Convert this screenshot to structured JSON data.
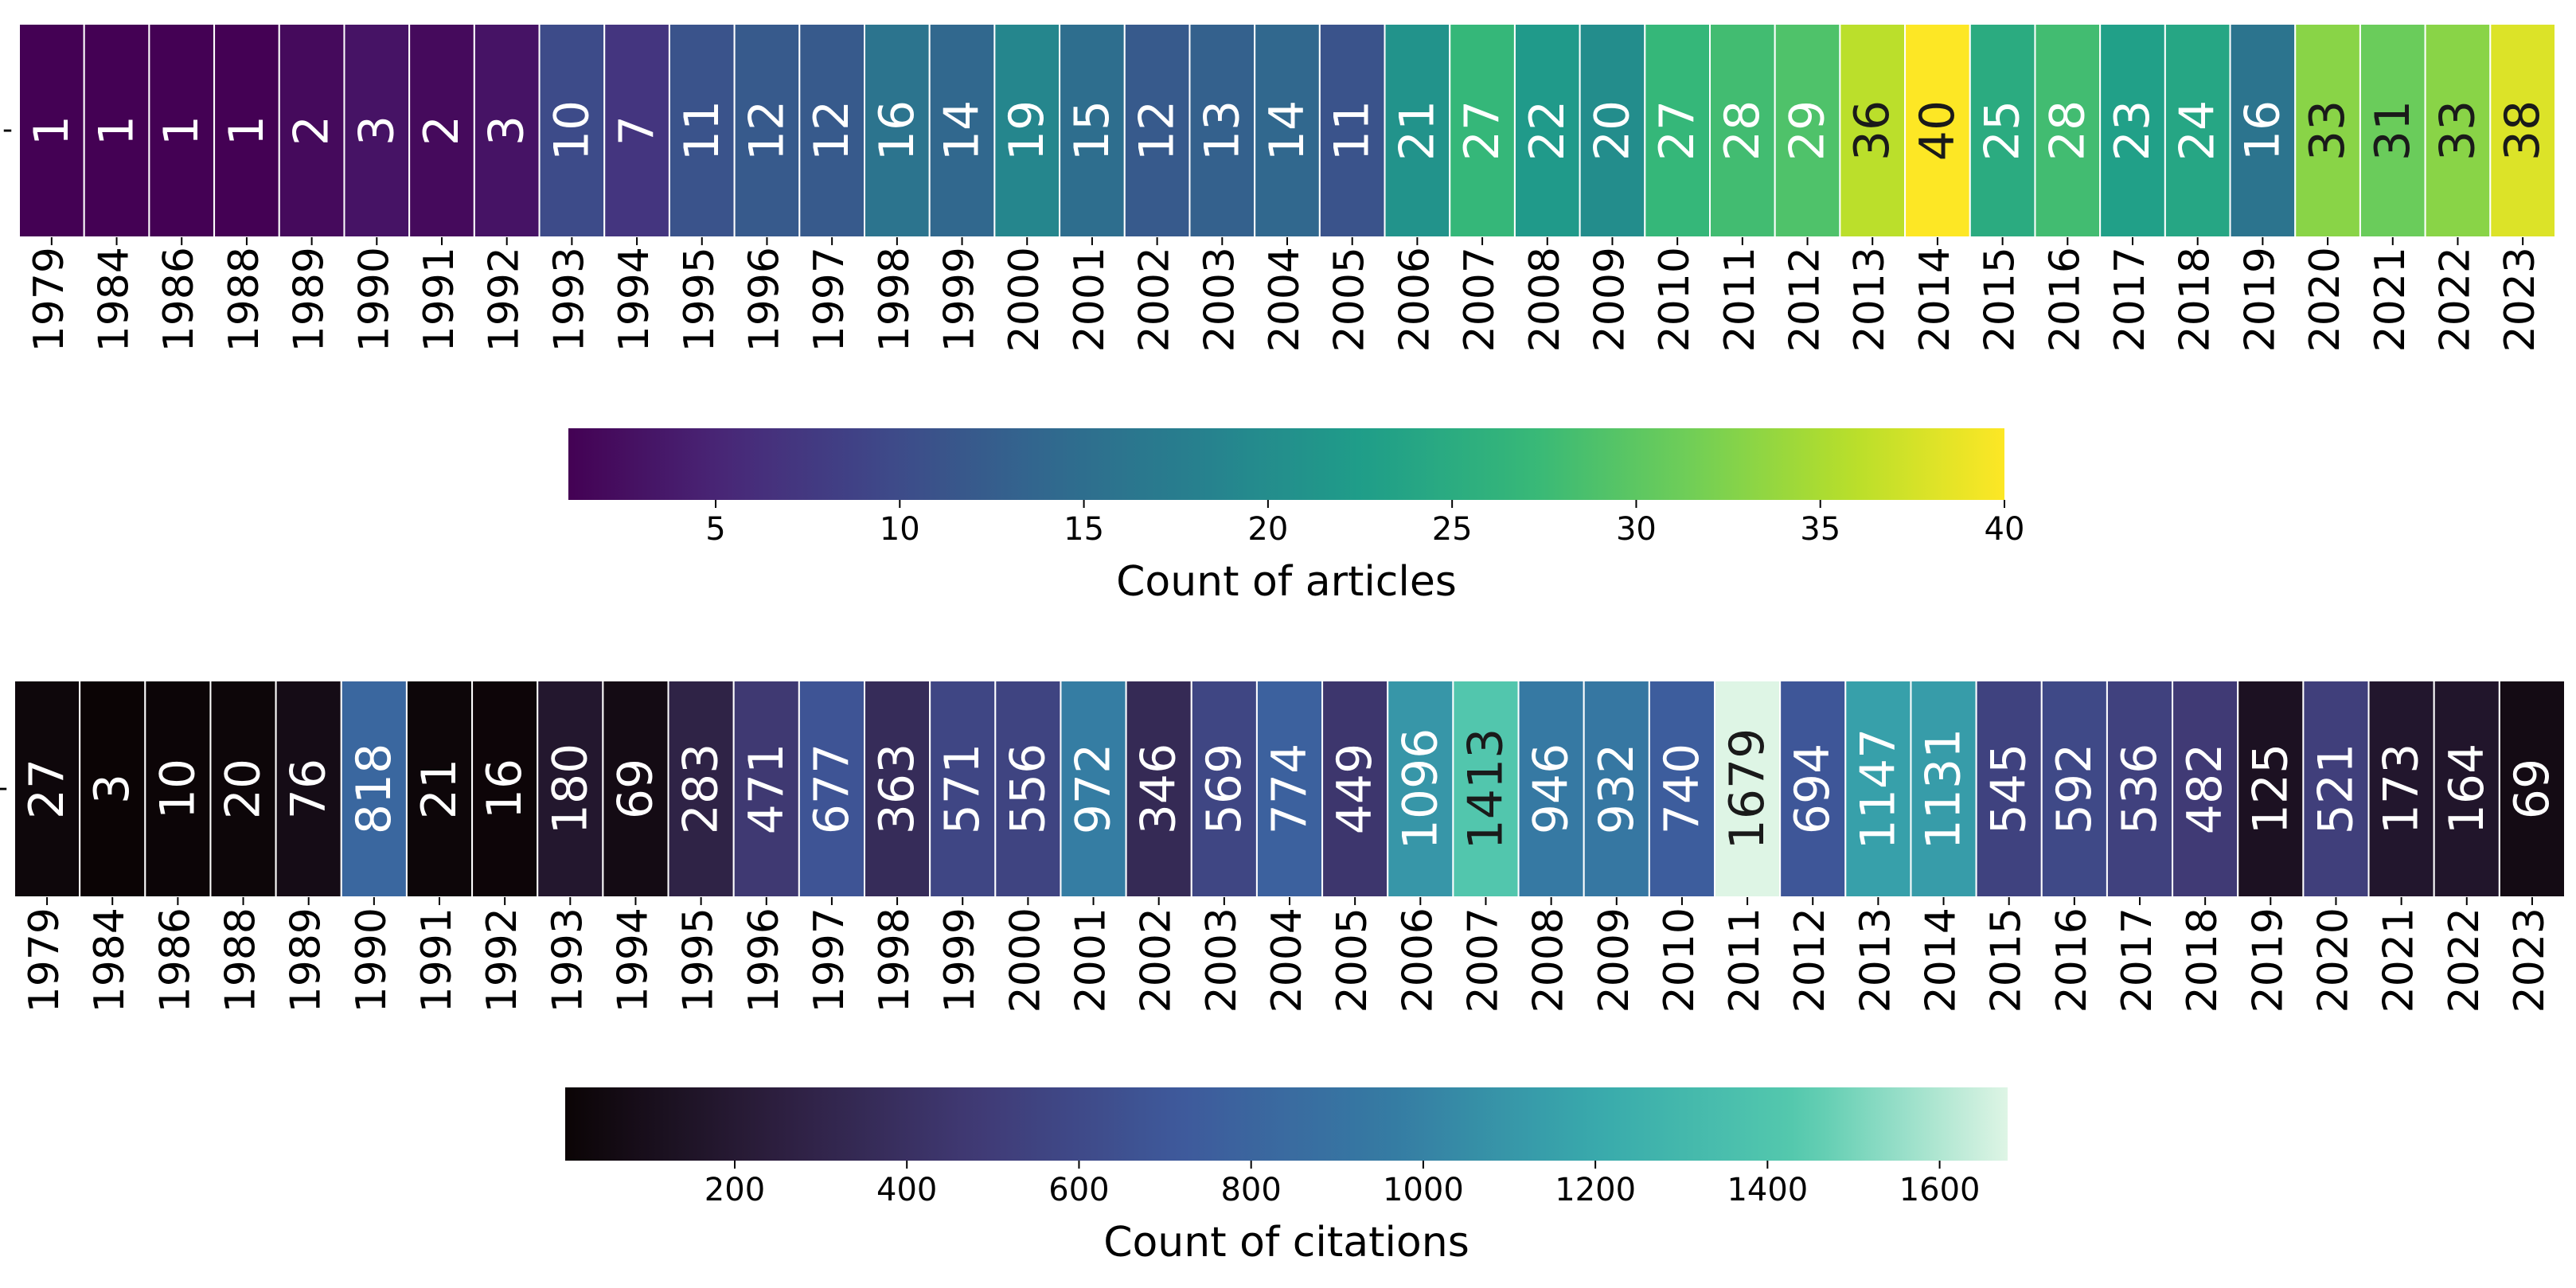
{
  "chart_data": [
    {
      "type": "heatmap",
      "categories": [
        "1979",
        "1984",
        "1986",
        "1988",
        "1989",
        "1990",
        "1991",
        "1992",
        "1993",
        "1994",
        "1995",
        "1996",
        "1997",
        "1998",
        "1999",
        "2000",
        "2001",
        "2002",
        "2003",
        "2004",
        "2005",
        "2006",
        "2007",
        "2008",
        "2009",
        "2010",
        "2011",
        "2012",
        "2013",
        "2014",
        "2015",
        "2016",
        "2017",
        "2018",
        "2019",
        "2020",
        "2021",
        "2022",
        "2023"
      ],
      "values": [
        1,
        1,
        1,
        1,
        2,
        3,
        2,
        3,
        10,
        7,
        11,
        12,
        12,
        16,
        14,
        19,
        15,
        12,
        13,
        14,
        11,
        21,
        27,
        22,
        20,
        27,
        28,
        29,
        36,
        40,
        25,
        28,
        23,
        24,
        16,
        33,
        31,
        33,
        38
      ],
      "colorbar": {
        "label": "Count of articles",
        "ticks": [
          "5",
          "10",
          "15",
          "20",
          "25",
          "30",
          "35",
          "40"
        ],
        "range": [
          1,
          40
        ],
        "colormap": "viridis"
      },
      "ytick": "-"
    },
    {
      "type": "heatmap",
      "categories": [
        "1979",
        "1984",
        "1986",
        "1988",
        "1989",
        "1990",
        "1991",
        "1992",
        "1993",
        "1994",
        "1995",
        "1996",
        "1997",
        "1998",
        "1999",
        "2000",
        "2001",
        "2002",
        "2003",
        "2004",
        "2005",
        "2006",
        "2007",
        "2008",
        "2009",
        "2010",
        "2011",
        "2012",
        "2013",
        "2014",
        "2015",
        "2016",
        "2017",
        "2018",
        "2019",
        "2020",
        "2021",
        "2022",
        "2023"
      ],
      "values": [
        27,
        3,
        10,
        20,
        76,
        818,
        21,
        16,
        180,
        69,
        283,
        471,
        677,
        363,
        571,
        556,
        972,
        346,
        569,
        774,
        449,
        1096,
        1413,
        946,
        932,
        740,
        1679,
        694,
        1147,
        1131,
        545,
        592,
        536,
        482,
        125,
        521,
        173,
        164,
        69
      ],
      "colorbar": {
        "label": "Count of citations",
        "ticks": [
          "200",
          "400",
          "600",
          "800",
          "1000",
          "1200",
          "1400",
          "1600"
        ],
        "range": [
          3,
          1679
        ],
        "colormap": "mako"
      },
      "ytick": "-"
    }
  ]
}
